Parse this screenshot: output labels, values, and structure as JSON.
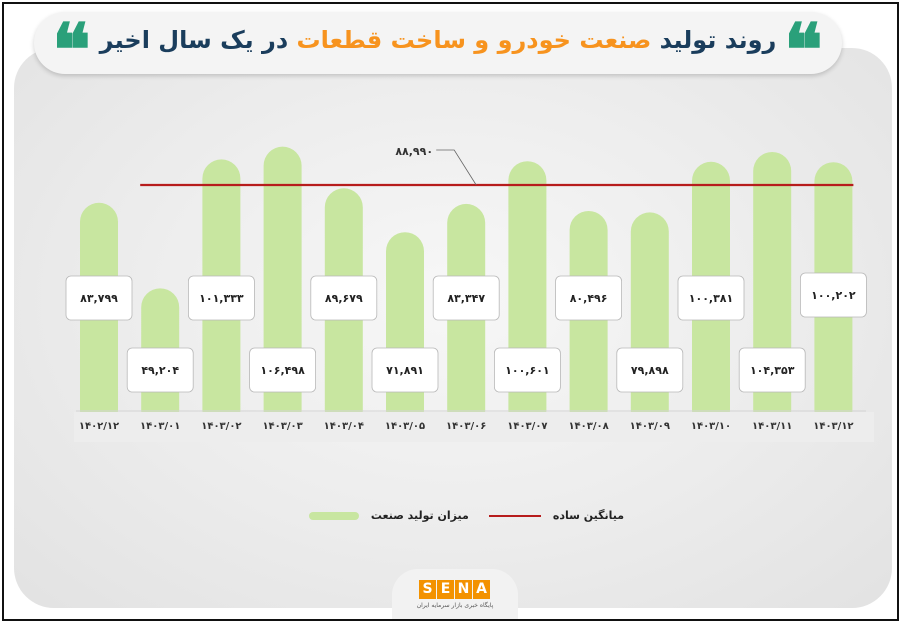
{
  "title": {
    "part1": "روند تولید ",
    "part2": "صنعت خودرو و ساخت قطعات",
    "part3": " در یک سال اخیر"
  },
  "chart_data": {
    "type": "bar",
    "direction": "rtl",
    "categories": [
      "۱۴۰۲/۱۲",
      "۱۴۰۳/۰۱",
      "۱۴۰۳/۰۲",
      "۱۴۰۳/۰۳",
      "۱۴۰۳/۰۴",
      "۱۴۰۳/۰۵",
      "۱۴۰۳/۰۶",
      "۱۴۰۳/۰۷",
      "۱۴۰۳/۰۸",
      "۱۴۰۳/۰۹",
      "۱۴۰۳/۱۰",
      "۱۴۰۳/۱۱",
      "۱۴۰۳/۱۲"
    ],
    "values": [
      83799,
      49204,
      101333,
      106498,
      89679,
      71891,
      83347,
      100601,
      80496,
      79898,
      100381,
      104353,
      100202
    ],
    "value_labels": [
      "۸۳,۷۹۹",
      "۴۹,۲۰۴",
      "۱۰۱,۳۳۳",
      "۱۰۶,۴۹۸",
      "۸۹,۶۷۹",
      "۷۱,۸۹۱",
      "۸۳,۳۴۷",
      "۱۰۰,۶۰۱",
      "۸۰,۴۹۶",
      "۷۹,۸۹۸",
      "۱۰۰,۳۸۱",
      "۱۰۴,۳۵۳",
      "۱۰۰,۲۰۲"
    ],
    "series": [
      {
        "name": "میزان تولید صنعت",
        "color": "#c8e6a0"
      },
      {
        "name": "میانگین ساده",
        "color": "#b71c1c"
      }
    ],
    "average": 88990,
    "average_label": "۸۸,۹۹۰",
    "ylim": [
      0,
      110000
    ],
    "grid": false,
    "legend": "bottom",
    "title": "روند تولید صنعت خودرو و ساخت قطعات در یک سال اخیر"
  },
  "legend": {
    "production": "میزان تولید صنعت",
    "average": "میانگین ساده"
  },
  "logo": {
    "letters": [
      "S",
      "E",
      "N",
      "A"
    ],
    "subtitle": "پایگاه خبری بازار سرمایه ایران"
  }
}
